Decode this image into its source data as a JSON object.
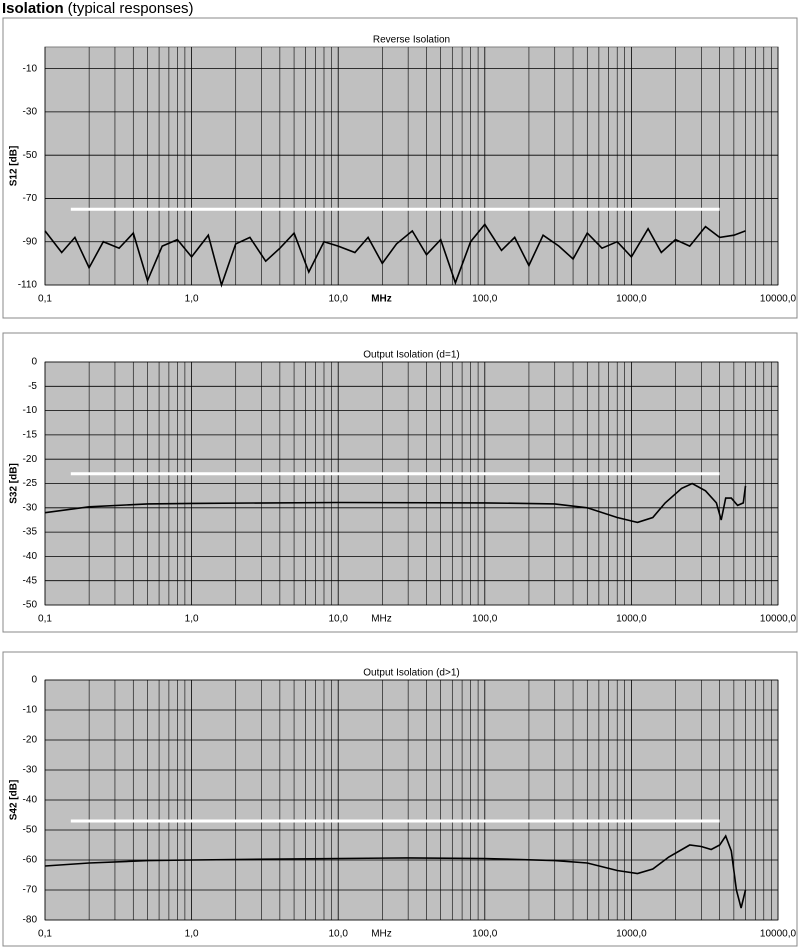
{
  "header": {
    "title": "Isolation",
    "subtitle": "(typical responses)"
  },
  "chart_data": [
    {
      "type": "line",
      "title": "Reverse Isolation",
      "xlabel": "MHz",
      "ylabel": "S12 [dB]",
      "label_bold": true,
      "log_x": true,
      "grid": true,
      "background": "#c0c0c0",
      "xlim": [
        0.1,
        10000
      ],
      "xticks": [
        {
          "value": 0.1,
          "label": "0,1"
        },
        {
          "value": 1,
          "label": "1,0"
        },
        {
          "value": 10,
          "label": "10,0"
        },
        {
          "value": 100,
          "label": "100,0"
        },
        {
          "value": 1000,
          "label": "1000,0"
        },
        {
          "value": 10000,
          "label": "10000,0"
        }
      ],
      "ylim": [
        -110,
        0
      ],
      "yticks": [
        -10,
        -30,
        -50,
        -70,
        -90,
        -110
      ],
      "series": [
        {
          "color": "#000000",
          "x": [
            0.1,
            0.13,
            0.16,
            0.2,
            0.25,
            0.32,
            0.4,
            0.5,
            0.63,
            0.8,
            1,
            1.3,
            1.6,
            2,
            2.5,
            3.2,
            4,
            5,
            6.3,
            8,
            10,
            13,
            16,
            20,
            25,
            32,
            40,
            50,
            63,
            80,
            100,
            130,
            160,
            200,
            250,
            320,
            400,
            500,
            630,
            800,
            1000,
            1300,
            1600,
            2000,
            2500,
            3200,
            4000,
            5000,
            6000
          ],
          "values": [
            -85,
            -95,
            -88,
            -102,
            -90,
            -93,
            -86,
            -108,
            -92,
            -89,
            -97,
            -87,
            -110,
            -91,
            -88,
            -99,
            -93,
            -86,
            -104,
            -90,
            -92,
            -95,
            -88,
            -100,
            -91,
            -85,
            -96,
            -89,
            -109,
            -90,
            -82,
            -94,
            -88,
            -101,
            -87,
            -92,
            -98,
            -86,
            -93,
            -90,
            -97,
            -84,
            -95,
            -89,
            -92,
            -83,
            -88,
            -87,
            -85
          ]
        },
        {
          "color": "#ffffff",
          "x": [
            0.15,
            4000
          ],
          "values": [
            -75,
            -75
          ]
        }
      ]
    },
    {
      "type": "line",
      "title": "Output Isolation (d=1)",
      "xlabel": "MHz",
      "ylabel": "S32 [dB]",
      "label_bold": false,
      "log_x": true,
      "grid": true,
      "background": "#c0c0c0",
      "xlim": [
        0.1,
        10000
      ],
      "xticks": [
        {
          "value": 0.1,
          "label": "0,1"
        },
        {
          "value": 1,
          "label": "1,0"
        },
        {
          "value": 10,
          "label": "10,0"
        },
        {
          "value": 100,
          "label": "100,0"
        },
        {
          "value": 1000,
          "label": "1000,0"
        },
        {
          "value": 10000,
          "label": "10000,0"
        }
      ],
      "ylim": [
        -50,
        0
      ],
      "yticks": [
        0,
        -5,
        -10,
        -15,
        -20,
        -25,
        -30,
        -35,
        -40,
        -45,
        -50
      ],
      "series": [
        {
          "color": "#000000",
          "x": [
            0.1,
            0.2,
            0.5,
            1,
            10,
            100,
            300,
            500,
            800,
            1100,
            1400,
            1700,
            2200,
            2600,
            3200,
            3800,
            4100,
            4400,
            4800,
            5300,
            5800,
            6000
          ],
          "values": [
            -31,
            -29.8,
            -29.2,
            -29.1,
            -28.9,
            -29,
            -29.2,
            -30,
            -32,
            -33,
            -32,
            -29,
            -26,
            -25,
            -26.5,
            -29,
            -32.5,
            -28,
            -28,
            -29.5,
            -29,
            -25.5
          ]
        },
        {
          "color": "#ffffff",
          "x": [
            0.15,
            4000
          ],
          "values": [
            -23,
            -23
          ]
        }
      ]
    },
    {
      "type": "line",
      "title": "Output Isolation (d>1)",
      "xlabel": "MHz",
      "ylabel": "S42 [dB]",
      "label_bold": false,
      "log_x": true,
      "grid": true,
      "background": "#c0c0c0",
      "xlim": [
        0.1,
        10000
      ],
      "xticks": [
        {
          "value": 0.1,
          "label": "0,1"
        },
        {
          "value": 1,
          "label": "1,0"
        },
        {
          "value": 10,
          "label": "10,0"
        },
        {
          "value": 100,
          "label": "100,0"
        },
        {
          "value": 1000,
          "label": "1000,0"
        },
        {
          "value": 10000,
          "label": "10000,0"
        }
      ],
      "ylim": [
        -80,
        0
      ],
      "yticks": [
        0,
        -10,
        -20,
        -30,
        -40,
        -50,
        -60,
        -70,
        -80
      ],
      "series": [
        {
          "color": "#000000",
          "x": [
            0.1,
            0.2,
            0.5,
            1,
            10,
            30,
            100,
            300,
            500,
            800,
            1100,
            1400,
            1800,
            2500,
            3000,
            3500,
            4000,
            4400,
            4800,
            5200,
            5600,
            6000
          ],
          "values": [
            -62,
            -61,
            -60.2,
            -60,
            -59.5,
            -59.3,
            -59.5,
            -60.2,
            -61,
            -63.5,
            -64.5,
            -63,
            -59,
            -55,
            -55.5,
            -56.5,
            -55,
            -52,
            -57,
            -70,
            -76,
            -70
          ]
        },
        {
          "color": "#ffffff",
          "x": [
            0.15,
            4000
          ],
          "values": [
            -47,
            -47
          ]
        }
      ]
    }
  ]
}
